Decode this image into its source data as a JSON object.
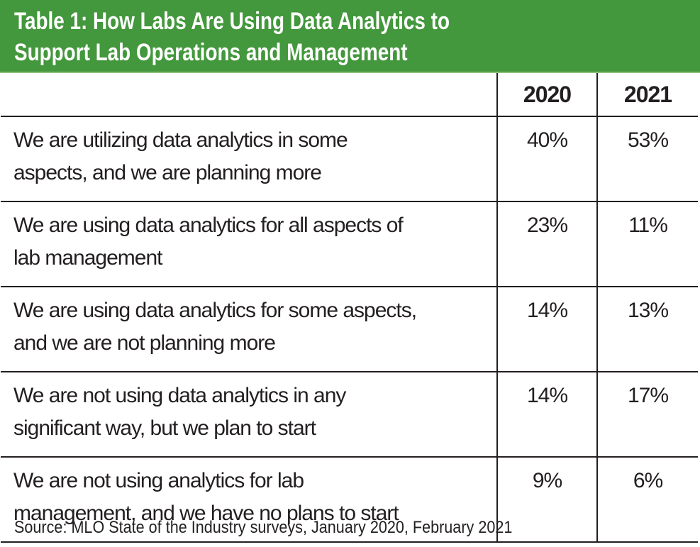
{
  "title": {
    "line1": "Table 1: How Labs Are Using Data Analytics to",
    "line2": "Support Lab Operations and Management"
  },
  "accent_color": "#43973c",
  "table": {
    "columns": [
      "",
      "2020",
      "2021"
    ],
    "rows": [
      {
        "label": "We are utilizing data analytics in some\naspects, and we are planning more",
        "y2020": "40%",
        "y2021": "53%"
      },
      {
        "label": "We are using data analytics for all aspects of\nlab management",
        "y2020": "23%",
        "y2021": "11%"
      },
      {
        "label": "We are using data analytics for some aspects,\nand we are not planning more",
        "y2020": "14%",
        "y2021": "13%"
      },
      {
        "label": "We are not using data analytics in any\nsignificant way, but we plan to start",
        "y2020": "14%",
        "y2021": "17%"
      },
      {
        "label": "We are not using analytics for lab\nmanagement, and we have no plans to start",
        "y2020": "9%",
        "y2021": "6%"
      }
    ]
  },
  "source": "Source:  MLO State of the Industry surveys, January 2020, February 2021"
}
